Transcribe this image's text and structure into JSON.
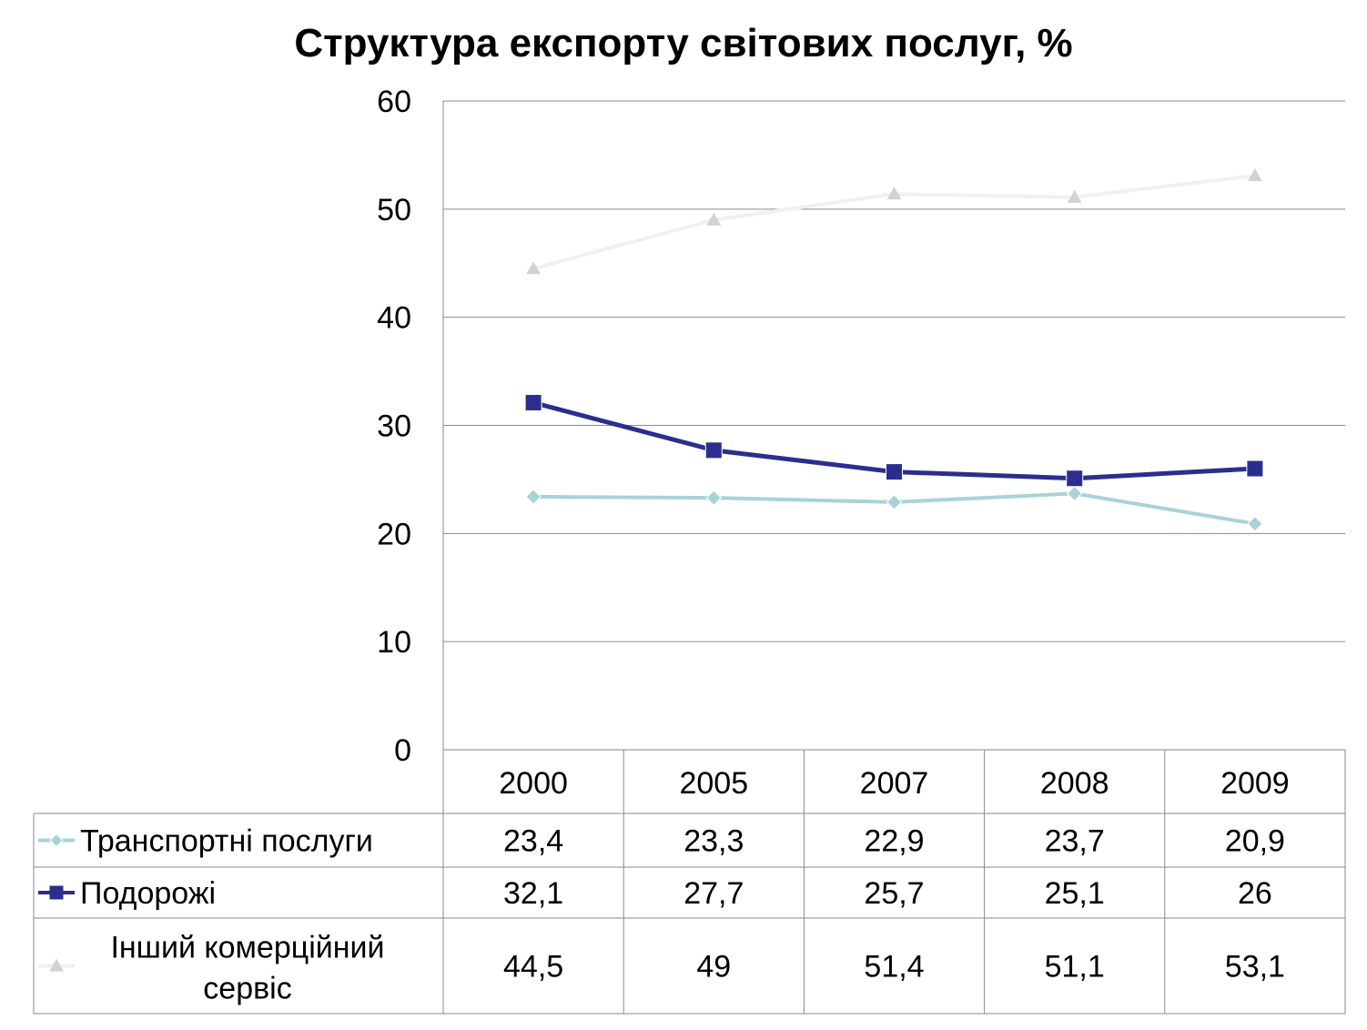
{
  "chart_data": {
    "type": "line",
    "title": "Структура експорту світових послуг, %",
    "xlabel": "",
    "ylabel": "",
    "categories": [
      "2000",
      "2005",
      "2007",
      "2008",
      "2009"
    ],
    "ylim": [
      0,
      60
    ],
    "yticks": [
      "0",
      "10",
      "20",
      "30",
      "40",
      "50",
      "60"
    ],
    "grid": true,
    "legend": "data-table-left",
    "series": [
      {
        "name": "Транспортні послуги",
        "values": [
          23.4,
          23.3,
          22.9,
          23.7,
          20.9
        ],
        "labels": [
          "23,4",
          "23,3",
          "22,9",
          "23,7",
          "20,9"
        ],
        "color": "#a8d3d6",
        "marker": "diamond"
      },
      {
        "name": "Подорожі",
        "values": [
          32.1,
          27.7,
          25.7,
          25.1,
          26
        ],
        "labels": [
          "32,1",
          "27,7",
          "25,7",
          "25,1",
          "26"
        ],
        "color": "#2b2e8f",
        "marker": "square"
      },
      {
        "name_lines": [
          "Інший комерційний",
          "сервіс"
        ],
        "values": [
          44.5,
          49,
          51.4,
          51.1,
          53.1
        ],
        "labels": [
          "44,5",
          "49",
          "51,4",
          "51,1",
          "53,1"
        ],
        "color": "#f0f0f0",
        "marker_color": "#d2d2d2",
        "marker": "triangle"
      }
    ]
  }
}
